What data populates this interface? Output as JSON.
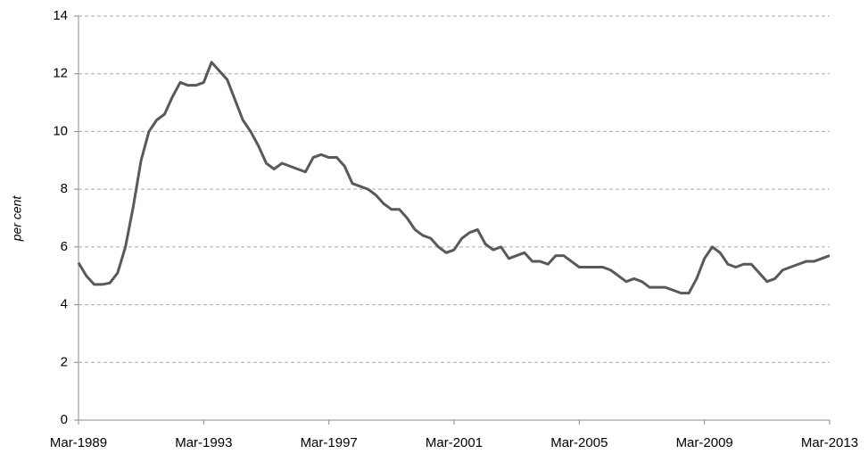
{
  "chart_data": {
    "type": "line",
    "y_label": "per cent",
    "categories": [
      "Mar-1989",
      null,
      null,
      null,
      null,
      null,
      null,
      null,
      null,
      null,
      null,
      null,
      null,
      null,
      null,
      null,
      "Mar-1993",
      null,
      null,
      null,
      null,
      null,
      null,
      null,
      null,
      null,
      null,
      null,
      null,
      null,
      null,
      null,
      "Mar-1997",
      null,
      null,
      null,
      null,
      null,
      null,
      null,
      null,
      null,
      null,
      null,
      null,
      null,
      null,
      null,
      "Mar-2001",
      null,
      null,
      null,
      null,
      null,
      null,
      null,
      null,
      null,
      null,
      null,
      null,
      null,
      null,
      null,
      "Mar-2005",
      null,
      null,
      null,
      null,
      null,
      null,
      null,
      null,
      null,
      null,
      null,
      null,
      null,
      null,
      null,
      "Mar-2009",
      null,
      null,
      null,
      null,
      null,
      null,
      null,
      null,
      null,
      null,
      null,
      null,
      null,
      null,
      null,
      "Mar-2013"
    ],
    "series": [
      {
        "color": "#595959",
        "values": [
          5.45,
          5.0,
          4.7,
          4.7,
          4.75,
          5.1,
          6.0,
          7.4,
          9.0,
          10.0,
          10.4,
          10.6,
          11.2,
          11.7,
          11.6,
          11.6,
          11.7,
          12.4,
          12.1,
          11.8,
          11.1,
          10.4,
          10.0,
          9.5,
          8.9,
          8.7,
          8.9,
          8.8,
          8.7,
          8.6,
          9.1,
          9.2,
          9.1,
          9.1,
          8.8,
          8.2,
          8.1,
          8.0,
          7.8,
          7.5,
          7.3,
          7.3,
          7.0,
          6.6,
          6.4,
          6.3,
          6.0,
          5.8,
          5.9,
          6.3,
          6.5,
          6.6,
          6.1,
          5.9,
          6.0,
          5.6,
          5.7,
          5.8,
          5.5,
          5.5,
          5.4,
          5.7,
          5.7,
          5.5,
          5.3,
          5.3,
          5.3,
          5.3,
          5.2,
          5.0,
          4.8,
          4.9,
          4.8,
          4.6,
          4.6,
          4.6,
          4.5,
          4.4,
          4.4,
          4.9,
          5.6,
          6.0,
          5.8,
          5.4,
          5.3,
          5.4,
          5.4,
          5.1,
          4.8,
          4.9,
          5.2,
          5.3,
          5.4,
          5.5,
          5.5,
          5.6,
          5.7
        ]
      }
    ],
    "ylim": [
      0,
      14
    ],
    "yticks": [
      0,
      2,
      4,
      6,
      8,
      10,
      12,
      14
    ],
    "grid": true
  }
}
